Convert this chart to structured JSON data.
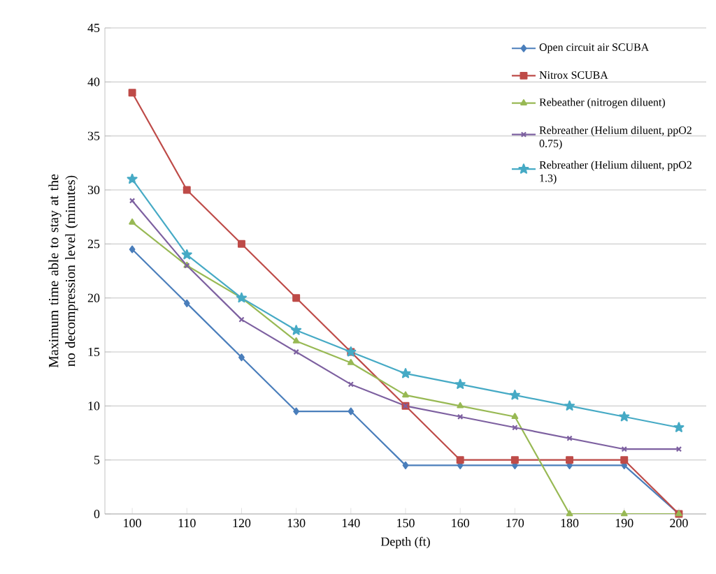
{
  "chart_data": {
    "type": "line",
    "xlabel": "Depth (ft)",
    "ylabel": "Maximum time able to stay at the no decompression level (minutes)",
    "categories": [
      "100",
      "110",
      "120",
      "130",
      "140",
      "150",
      "160",
      "170",
      "180",
      "190",
      "200"
    ],
    "series": [
      {
        "name": "Open circuit air SCUBA",
        "color": "#4a7ebb",
        "marker": "diamond",
        "values": [
          24.5,
          19.5,
          14.5,
          9.5,
          9.5,
          4.5,
          4.5,
          4.5,
          4.5,
          4.5,
          0
        ]
      },
      {
        "name": "Nitrox SCUBA",
        "color": "#be4b48",
        "marker": "square",
        "values": [
          39,
          30,
          25,
          20,
          15,
          10,
          5,
          5,
          5,
          5,
          0
        ]
      },
      {
        "name": "Rebeather (nitrogen diluent)",
        "color": "#98b954",
        "marker": "triangle",
        "values": [
          27,
          23,
          20,
          16,
          14,
          11,
          10,
          9,
          0,
          0,
          0
        ]
      },
      {
        "name": "Rebreather (Helium diluent, ppO2 0.75)",
        "color": "#7d60a0",
        "marker": "cross",
        "values": [
          29,
          23,
          18,
          15,
          12,
          10,
          9,
          8,
          7,
          6,
          6
        ]
      },
      {
        "name": "Rebreather (Helium diluent, ppO2 1.3)",
        "color": "#46aac5",
        "marker": "star",
        "values": [
          31,
          24,
          20,
          17,
          15,
          13,
          12,
          11,
          10,
          9,
          8
        ]
      }
    ],
    "ylim": [
      0,
      45
    ],
    "yticks": [
      0,
      5,
      10,
      15,
      20,
      25,
      30,
      35,
      40,
      45
    ],
    "grid": "y",
    "legend": "top right",
    "line_style": "solid"
  }
}
